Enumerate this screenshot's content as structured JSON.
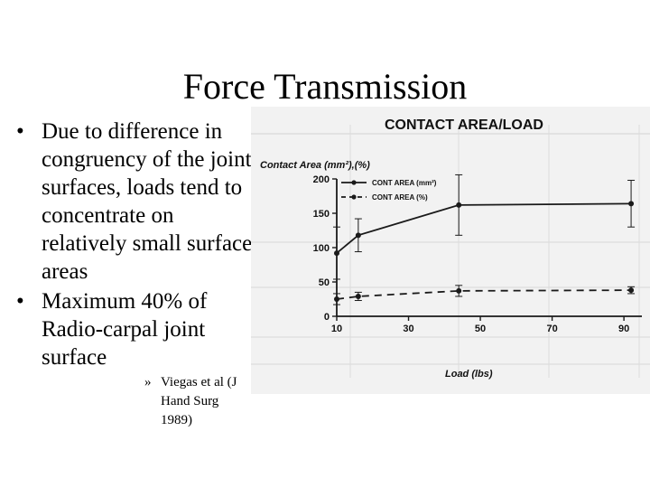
{
  "slide": {
    "title": "Force Transmission",
    "bullets": [
      {
        "marker": "•",
        "text": "Due to difference in congruency of the joint surfaces, loads tend to concentrate on relatively small surface areas"
      },
      {
        "marker": "•",
        "text": "Maximum 40% of Radio-carpal joint surface"
      }
    ],
    "citation": {
      "marker": "»",
      "text": "Viegas et al (J Hand Surg 1989)"
    }
  },
  "chart_data": {
    "type": "line",
    "title": "CONTACT AREA/LOAD",
    "ylabel": "Contact Area (mm²),(%)",
    "xlabel": "Load (lbs)",
    "xlim": [
      10,
      95
    ],
    "ylim": [
      0,
      200
    ],
    "xticks": [
      "10",
      "30",
      "50",
      "70",
      "90"
    ],
    "yticks": [
      "0",
      "50",
      "100",
      "150",
      "200"
    ],
    "series": [
      {
        "name": "CONT AREA (mm²)",
        "style": "solid",
        "x": [
          10,
          16,
          44,
          92
        ],
        "y": [
          92,
          118,
          162,
          164
        ],
        "err": [
          38,
          24,
          44,
          34
        ]
      },
      {
        "name": "CONT AREA (%)",
        "style": "dashed",
        "x": [
          10,
          16,
          44,
          92
        ],
        "y": [
          25,
          29,
          37,
          38
        ],
        "err": [
          8,
          6,
          8,
          5
        ]
      }
    ],
    "colors": {
      "line": "#1a1a1a",
      "background": "#f2f2f2",
      "ghost": "#bdbdbd"
    }
  }
}
